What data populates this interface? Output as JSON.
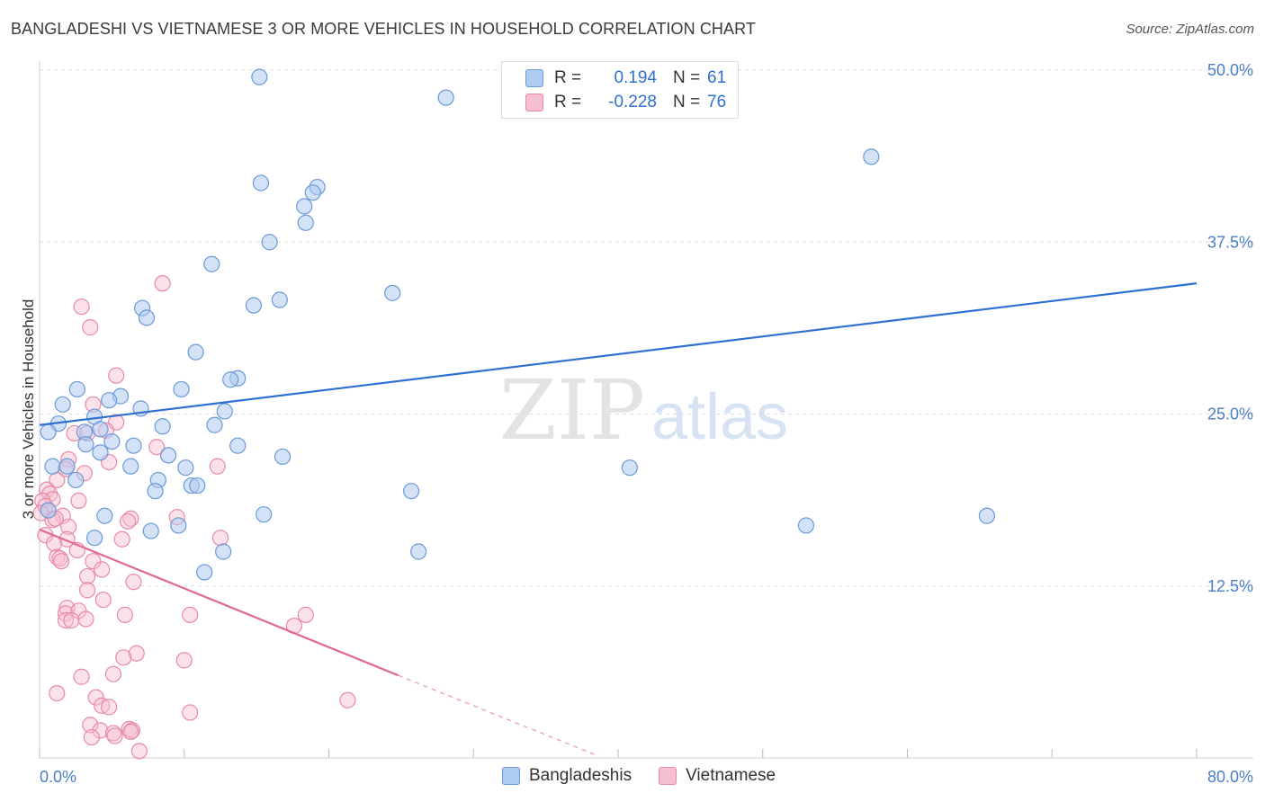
{
  "title": "BANGLADESHI VS VIETNAMESE 3 OR MORE VEHICLES IN HOUSEHOLD CORRELATION CHART",
  "source": "Source: ZipAtlas.com",
  "watermark": {
    "zip": "ZIP",
    "atlas": "atlas"
  },
  "colors": {
    "blue_fill": "#aecbf0",
    "blue_stroke": "#6b9ad8",
    "blue_line": "#2f6fd0",
    "pink_fill": "#f6bfd0",
    "pink_stroke": "#e88aa8",
    "pink_line": "#e0698f",
    "grid": "#dddddd",
    "tick_text": "#4a7ec9"
  },
  "legend": {
    "rows": [
      {
        "r_label": "R =",
        "r_value": "0.194",
        "n_label": "N =",
        "n_value": "61"
      },
      {
        "r_label": "R =",
        "r_value": "-0.228",
        "n_label": "N =",
        "n_value": "76"
      }
    ]
  },
  "bottom_legend": [
    "Bangladeshis",
    "Vietnamese"
  ],
  "chart_data": {
    "type": "scatter",
    "title": "BANGLADESHI VS VIETNAMESE 3 OR MORE VEHICLES IN HOUSEHOLD CORRELATION CHART",
    "xlabel": "",
    "ylabel": "3 or more Vehicles in Household",
    "xlim": [
      0,
      80
    ],
    "ylim": [
      0,
      50
    ],
    "x_tick_labels": [
      "0.0%",
      "80.0%"
    ],
    "y_ticks": [
      12.5,
      25.0,
      37.5,
      50.0
    ],
    "y_tick_labels": [
      "12.5%",
      "25.0%",
      "37.5%",
      "50.0%"
    ],
    "grid": true,
    "legend_position": "top-center",
    "series": [
      {
        "name": "Bangladeshis",
        "trend": {
          "x": [
            0,
            80
          ],
          "y": [
            24.2,
            34.5
          ]
        },
        "points": [
          [
            15.2,
            49.5
          ],
          [
            28.1,
            48.0
          ],
          [
            57.5,
            43.7
          ],
          [
            15.3,
            41.8
          ],
          [
            19.2,
            41.5
          ],
          [
            18.9,
            41.1
          ],
          [
            18.3,
            40.1
          ],
          [
            18.4,
            38.9
          ],
          [
            15.9,
            37.5
          ],
          [
            11.9,
            35.9
          ],
          [
            24.4,
            33.8
          ],
          [
            16.6,
            33.3
          ],
          [
            14.8,
            32.9
          ],
          [
            7.1,
            32.7
          ],
          [
            7.4,
            32.0
          ],
          [
            10.8,
            29.5
          ],
          [
            13.7,
            27.6
          ],
          [
            13.2,
            27.5
          ],
          [
            2.6,
            26.8
          ],
          [
            9.8,
            26.8
          ],
          [
            5.6,
            26.3
          ],
          [
            4.8,
            26.0
          ],
          [
            1.6,
            25.7
          ],
          [
            7.0,
            25.4
          ],
          [
            12.8,
            25.2
          ],
          [
            3.8,
            24.8
          ],
          [
            1.3,
            24.3
          ],
          [
            8.5,
            24.1
          ],
          [
            12.1,
            24.2
          ],
          [
            0.6,
            23.7
          ],
          [
            4.2,
            23.9
          ],
          [
            3.1,
            23.7
          ],
          [
            5.0,
            23.0
          ],
          [
            3.2,
            22.8
          ],
          [
            6.5,
            22.7
          ],
          [
            13.7,
            22.7
          ],
          [
            4.2,
            22.2
          ],
          [
            8.9,
            22.0
          ],
          [
            16.8,
            21.9
          ],
          [
            0.9,
            21.2
          ],
          [
            1.9,
            21.2
          ],
          [
            10.1,
            21.1
          ],
          [
            6.3,
            21.2
          ],
          [
            40.8,
            21.1
          ],
          [
            2.5,
            20.2
          ],
          [
            8.2,
            20.2
          ],
          [
            10.5,
            19.8
          ],
          [
            10.9,
            19.8
          ],
          [
            8.0,
            19.4
          ],
          [
            25.7,
            19.4
          ],
          [
            0.6,
            18.0
          ],
          [
            4.5,
            17.6
          ],
          [
            15.5,
            17.7
          ],
          [
            65.5,
            17.6
          ],
          [
            7.7,
            16.5
          ],
          [
            9.6,
            16.9
          ],
          [
            53.0,
            16.9
          ],
          [
            3.8,
            16.0
          ],
          [
            12.7,
            15.0
          ],
          [
            26.2,
            15.0
          ],
          [
            11.4,
            13.5
          ]
        ]
      },
      {
        "name": "Vietnamese",
        "trend": {
          "x": [
            0,
            24.8
          ],
          "y": [
            16.6,
            6.0
          ]
        },
        "trend_dashed": {
          "x": [
            24.8,
            38.5
          ],
          "y": [
            6.0,
            0.2
          ]
        },
        "points": [
          [
            8.5,
            34.5
          ],
          [
            2.9,
            32.8
          ],
          [
            3.5,
            31.3
          ],
          [
            5.3,
            27.8
          ],
          [
            3.7,
            25.7
          ],
          [
            5.3,
            24.4
          ],
          [
            4.6,
            23.8
          ],
          [
            2.4,
            23.6
          ],
          [
            3.3,
            23.6
          ],
          [
            8.1,
            22.6
          ],
          [
            2.0,
            21.7
          ],
          [
            4.8,
            21.5
          ],
          [
            12.3,
            21.2
          ],
          [
            1.8,
            21.0
          ],
          [
            3.1,
            20.7
          ],
          [
            1.2,
            20.2
          ],
          [
            0.5,
            19.5
          ],
          [
            0.7,
            19.2
          ],
          [
            0.9,
            18.8
          ],
          [
            0.2,
            18.7
          ],
          [
            2.7,
            18.7
          ],
          [
            0.4,
            18.3
          ],
          [
            0.6,
            18.0
          ],
          [
            0.1,
            17.8
          ],
          [
            1.6,
            17.6
          ],
          [
            0.9,
            17.3
          ],
          [
            1.1,
            17.4
          ],
          [
            6.3,
            17.4
          ],
          [
            6.1,
            17.2
          ],
          [
            9.5,
            17.5
          ],
          [
            2.0,
            16.8
          ],
          [
            0.4,
            16.2
          ],
          [
            1.9,
            15.9
          ],
          [
            12.5,
            16.0
          ],
          [
            5.7,
            15.9
          ],
          [
            1.0,
            15.6
          ],
          [
            2.6,
            15.1
          ],
          [
            1.2,
            14.6
          ],
          [
            1.4,
            14.5
          ],
          [
            1.5,
            14.3
          ],
          [
            3.7,
            14.3
          ],
          [
            4.3,
            13.7
          ],
          [
            3.3,
            13.2
          ],
          [
            6.5,
            12.8
          ],
          [
            3.3,
            12.2
          ],
          [
            4.4,
            11.5
          ],
          [
            1.9,
            10.9
          ],
          [
            1.8,
            10.5
          ],
          [
            2.7,
            10.7
          ],
          [
            10.4,
            10.4
          ],
          [
            5.9,
            10.4
          ],
          [
            18.4,
            10.4
          ],
          [
            1.8,
            10.0
          ],
          [
            2.2,
            10.0
          ],
          [
            3.2,
            10.1
          ],
          [
            17.6,
            9.6
          ],
          [
            6.7,
            7.6
          ],
          [
            5.8,
            7.3
          ],
          [
            10.0,
            7.1
          ],
          [
            5.1,
            6.1
          ],
          [
            2.9,
            5.9
          ],
          [
            1.2,
            4.7
          ],
          [
            3.9,
            4.4
          ],
          [
            21.3,
            4.2
          ],
          [
            4.3,
            3.8
          ],
          [
            4.8,
            3.7
          ],
          [
            10.4,
            3.3
          ],
          [
            3.5,
            2.4
          ],
          [
            6.2,
            2.1
          ],
          [
            6.4,
            2.0
          ],
          [
            6.3,
            1.9
          ],
          [
            4.2,
            2.0
          ],
          [
            5.1,
            1.8
          ],
          [
            3.6,
            1.5
          ],
          [
            5.2,
            1.6
          ],
          [
            6.9,
            0.5
          ]
        ]
      }
    ]
  }
}
